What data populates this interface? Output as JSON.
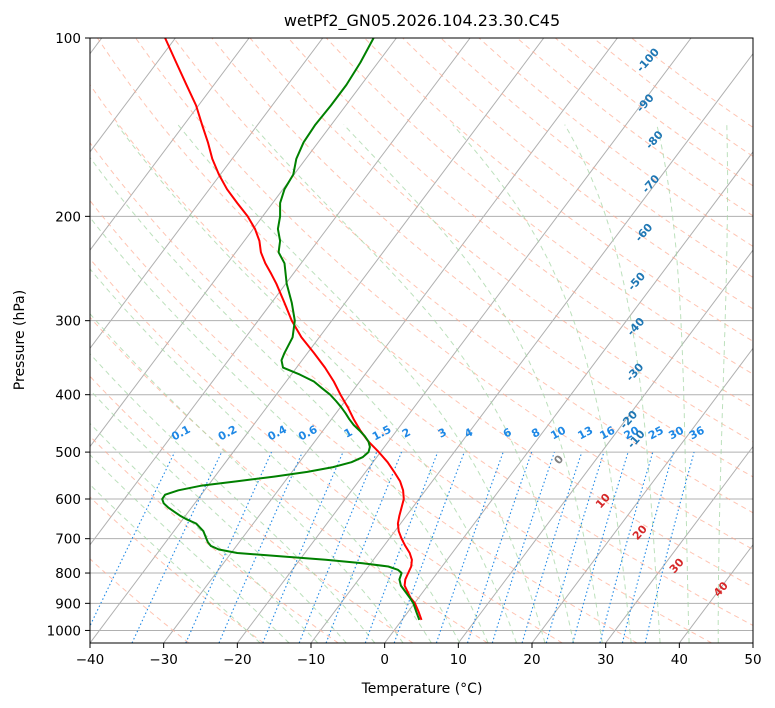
{
  "chart_data": {
    "type": "line",
    "title": "wetPf2_GN05.2026.104.23.30.C45",
    "xlabel": "Temperature (°C)",
    "ylabel": "Pressure (hPa)",
    "xlim": [
      -40,
      50
    ],
    "ylim": [
      1050,
      100
    ],
    "y_scale": "log",
    "grid": true,
    "x_ticks": [
      "−40",
      "−30",
      "−20",
      "−10",
      "0",
      "10",
      "20",
      "30",
      "40",
      "50"
    ],
    "x_tick_values": [
      -40,
      -30,
      -20,
      -10,
      0,
      10,
      20,
      30,
      40,
      50
    ],
    "y_ticks": [
      "100",
      "200",
      "300",
      "400",
      "500",
      "600",
      "700",
      "800",
      "900",
      "1000"
    ],
    "y_tick_values": [
      100,
      200,
      300,
      400,
      500,
      600,
      700,
      800,
      900,
      1000
    ],
    "series": [
      {
        "color": "#ff0000",
        "p": [
          960,
          930,
          900,
          880,
          860,
          840,
          820,
          800,
          780,
          760,
          740,
          720,
          700,
          680,
          660,
          640,
          620,
          600,
          580,
          560,
          540,
          520,
          500,
          480,
          460,
          440,
          420,
          400,
          380,
          360,
          340,
          320,
          300,
          280,
          260,
          250,
          240,
          230,
          220,
          210,
          200,
          190,
          180,
          170,
          160,
          150,
          140,
          130,
          120,
          110,
          100
        ],
        "t": [
          5.0,
          4.6,
          4.1,
          3.5,
          3.1,
          2.7,
          2.8,
          3.2,
          3.6,
          3.7,
          3.4,
          2.8,
          2.3,
          1.9,
          1.8,
          2.0,
          2.3,
          2.6,
          2.5,
          2.1,
          1.3,
          0.4,
          -0.8,
          -2.2,
          -3.3,
          -4.2,
          -5.0,
          -6.0,
          -6.9,
          -8.1,
          -9.6,
          -11.3,
          -12.6,
          -13.6,
          -14.7,
          -15.4,
          -16.2,
          -16.8,
          -17.0,
          -17.6,
          -18.6,
          -20.0,
          -21.4,
          -22.5,
          -23.4,
          -24.0,
          -24.8,
          -25.6,
          -26.9,
          -28.3,
          -29.8
        ]
      },
      {
        "color": "#008000",
        "p": [
          960,
          930,
          900,
          880,
          860,
          840,
          820,
          800,
          790,
          780,
          770,
          760,
          750,
          740,
          730,
          720,
          710,
          700,
          680,
          660,
          650,
          640,
          630,
          620,
          610,
          600,
          590,
          580,
          570,
          560,
          550,
          540,
          530,
          520,
          510,
          500,
          490,
          480,
          470,
          460,
          450,
          440,
          430,
          420,
          410,
          400,
          390,
          380,
          370,
          360,
          350,
          340,
          320,
          300,
          280,
          260,
          240,
          230,
          220,
          210,
          200,
          190,
          180,
          170,
          160,
          150,
          140,
          130,
          120,
          110,
          100
        ],
        "t": [
          4.7,
          4.3,
          3.9,
          3.4,
          2.8,
          2.2,
          2.0,
          2.3,
          1.8,
          0.5,
          -3.0,
          -8.0,
          -14.0,
          -20.0,
          -22.5,
          -23.6,
          -24.0,
          -24.2,
          -24.6,
          -25.6,
          -26.8,
          -27.8,
          -28.6,
          -29.4,
          -30.0,
          -30.2,
          -29.8,
          -28.0,
          -25.0,
          -20.0,
          -15.0,
          -10.5,
          -7.0,
          -4.5,
          -3.0,
          -2.2,
          -2.0,
          -2.2,
          -2.7,
          -3.4,
          -4.2,
          -4.8,
          -5.3,
          -5.9,
          -6.6,
          -7.4,
          -8.5,
          -9.6,
          -11.5,
          -13.8,
          -14.0,
          -13.6,
          -12.5,
          -12.2,
          -12.6,
          -13.3,
          -13.6,
          -14.4,
          -14.2,
          -14.5,
          -14.2,
          -14.2,
          -13.6,
          -12.4,
          -12.0,
          -11.0,
          -9.4,
          -7.3,
          -5.2,
          -3.3,
          -1.5
        ]
      }
    ],
    "isotherm_step_c": 10,
    "dry_adiabat_labels": [
      "-100",
      "-90",
      "-80",
      "-70",
      "-60",
      "-50",
      "-40",
      "-30",
      "-20",
      "-10"
    ],
    "dry_adiabat_label_values": [
      -100,
      -90,
      -80,
      -70,
      -60,
      -50,
      -40,
      -30,
      -20,
      -10
    ],
    "moist_adiabat_labels": [
      "0",
      "10",
      "20",
      "30",
      "40"
    ],
    "moist_adiabat_label_values": [
      0,
      10,
      20,
      30,
      40
    ],
    "mixing_ratio_labels": [
      "0.1",
      "0.2",
      "0.4",
      "0.6",
      "1",
      "1.5",
      "2",
      "3",
      "4",
      "6",
      "8",
      "10",
      "13",
      "16",
      "20",
      "25",
      "30",
      "36"
    ],
    "mixing_ratio_values": [
      0.1,
      0.2,
      0.4,
      0.6,
      1,
      1.5,
      2,
      3,
      4,
      6,
      8,
      10,
      13,
      16,
      20,
      25,
      30,
      36
    ],
    "colors": {
      "temperature": "#ff0000",
      "dewpoint": "#008000",
      "isotherm": "#b0b0b0",
      "dry_adiabat": "#ffab91",
      "moist_adiabat": "#a6d6a6",
      "mixing_ratio": "#1e88e5",
      "dry_label": "#1f77b4",
      "moist_label": "#d62728",
      "mixing_label": "#1e88e5",
      "zero_label": "#808080"
    }
  }
}
